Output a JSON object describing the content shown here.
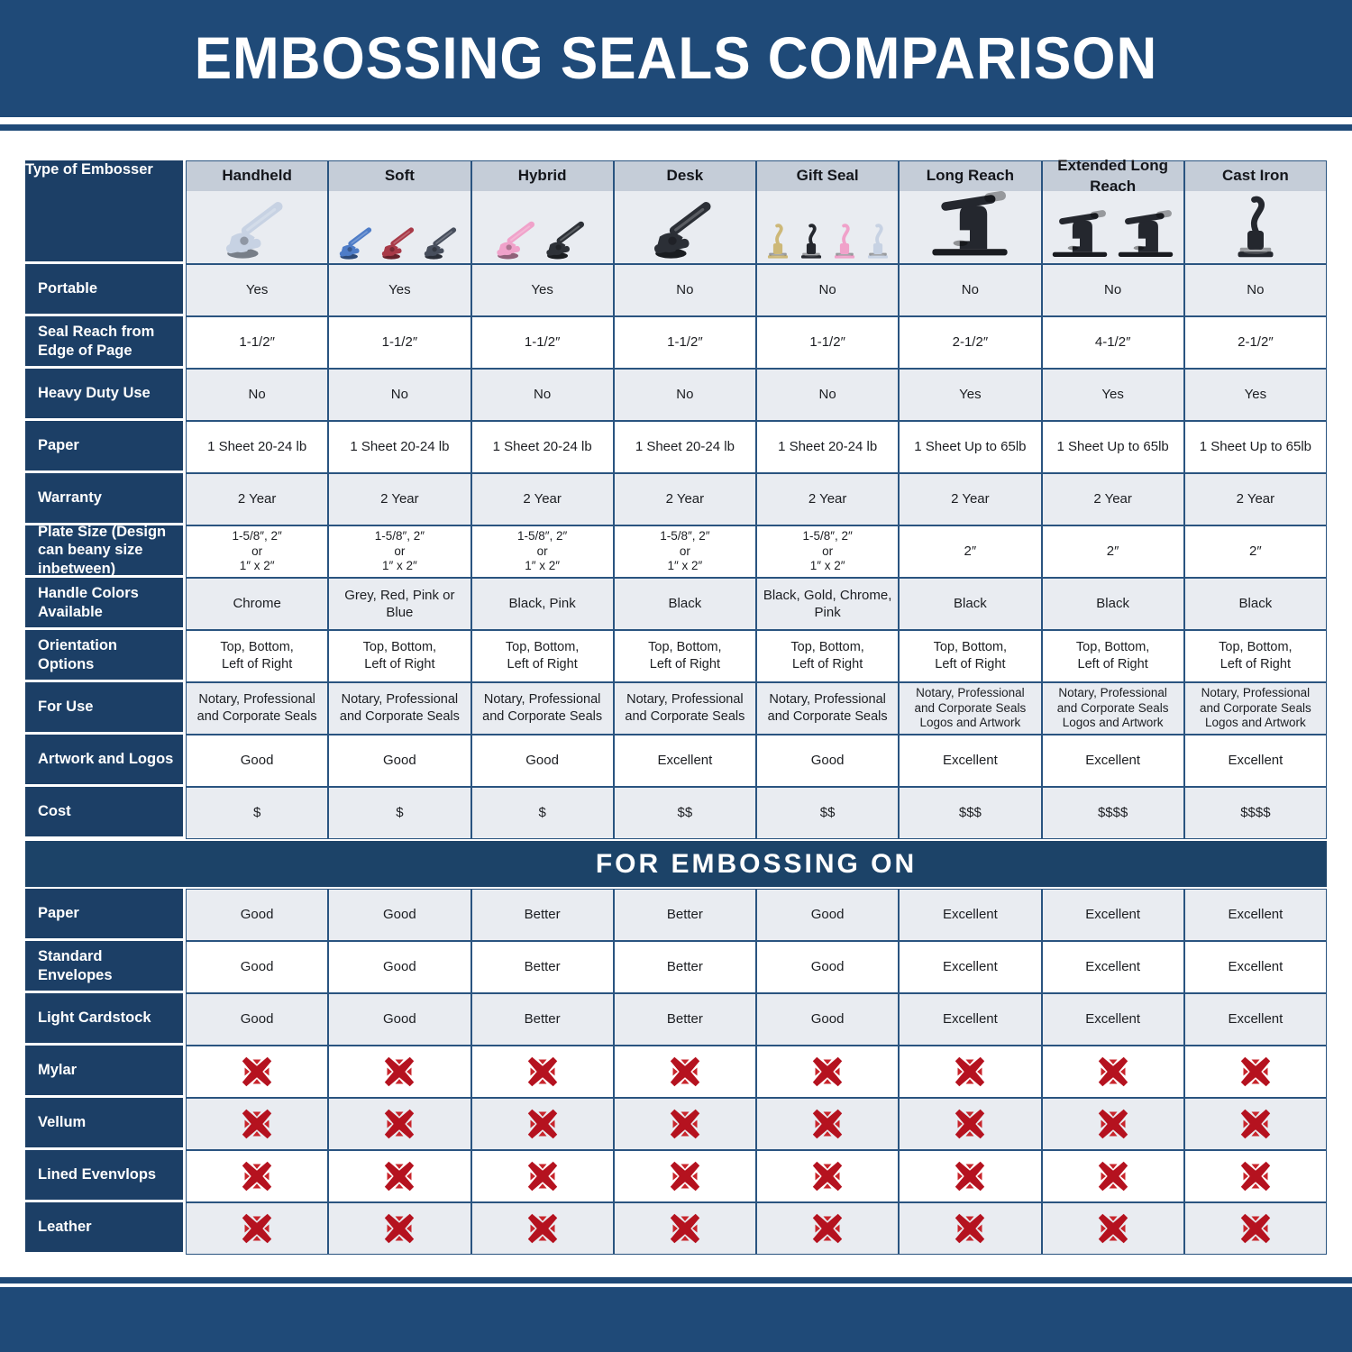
{
  "chart_data": {
    "type": "table",
    "title": "EMBOSSING SEALS COMPARISON",
    "corner_label": "Type of Embosser",
    "section2_title": "FOR EMBOSSING ON",
    "columns": [
      {
        "label": "Handheld",
        "images": [
          {
            "shape": "hand",
            "color": "#C7D2E3"
          }
        ]
      },
      {
        "label": "Soft",
        "images": [
          {
            "shape": "hand",
            "color": "#4E7CC7"
          },
          {
            "shape": "hand",
            "color": "#A83A48"
          },
          {
            "shape": "hand",
            "color": "#474E5C"
          }
        ]
      },
      {
        "label": "Hybrid",
        "images": [
          {
            "shape": "hand",
            "color": "#F0A2CA"
          },
          {
            "shape": "hand",
            "color": "#2E3238"
          }
        ]
      },
      {
        "label": "Desk",
        "images": [
          {
            "shape": "hand",
            "color": "#2B2F36"
          }
        ]
      },
      {
        "label": "Gift Seal",
        "images": [
          {
            "shape": "cast",
            "color": "#CDB878"
          },
          {
            "shape": "cast",
            "color": "#24272E"
          },
          {
            "shape": "cast",
            "color": "#F0A2CA"
          },
          {
            "shape": "cast",
            "color": "#C7D2E3"
          }
        ]
      },
      {
        "label": "Long Reach",
        "images": [
          {
            "shape": "desk",
            "color": "#24272E"
          }
        ]
      },
      {
        "label": "Extended Long Reach",
        "images": [
          {
            "shape": "desk",
            "color": "#24272E"
          },
          {
            "shape": "desk",
            "color": "#24272E"
          }
        ]
      },
      {
        "label": "Cast Iron",
        "images": [
          {
            "shape": "cast",
            "color": "#24272E"
          }
        ]
      }
    ],
    "spec_rows": [
      {
        "label": "Portable",
        "values": [
          "Yes",
          "Yes",
          "Yes",
          "No",
          "No",
          "No",
          "No",
          "No"
        ]
      },
      {
        "label": "Seal Reach from Edge of Page",
        "values": [
          "1-1/2″",
          "1-1/2″",
          "1-1/2″",
          "1-1/2″",
          "1-1/2″",
          "2-1/2″",
          "4-1/2″",
          "2-1/2″"
        ]
      },
      {
        "label": "Heavy Duty Use",
        "values": [
          "No",
          "No",
          "No",
          "No",
          "No",
          "Yes",
          "Yes",
          "Yes"
        ]
      },
      {
        "label": "Paper",
        "values": [
          "1 Sheet 20-24 lb",
          "1 Sheet 20-24 lb",
          "1 Sheet 20-24 lb",
          "1 Sheet 20-24 lb",
          "1 Sheet 20-24 lb",
          "1 Sheet Up to 65lb",
          "1 Sheet Up to 65lb",
          "1 Sheet Up to 65lb"
        ]
      },
      {
        "label": "Warranty",
        "values": [
          "2 Year",
          "2 Year",
          "2 Year",
          "2 Year",
          "2 Year",
          "2 Year",
          "2 Year",
          "2 Year"
        ]
      },
      {
        "label": "Plate Size (Design can beany size inbetween)",
        "values": [
          "1-5/8″, 2″\nor\n1″ x 2″",
          "1-5/8″, 2″\nor\n1″ x 2″",
          "1-5/8″, 2″\nor\n1″ x 2″",
          "1-5/8″, 2″\nor\n1″ x 2″",
          "1-5/8″, 2″\nor\n1″ x 2″",
          "2″",
          "2″",
          "2″"
        ]
      },
      {
        "label": "Handle Colors Available",
        "values": [
          "Chrome",
          "Grey, Red, Pink or Blue",
          "Black, Pink",
          "Black",
          "Black, Gold, Chrome, Pink",
          "Black",
          "Black",
          "Black"
        ]
      },
      {
        "label": "Orientation Options",
        "values": [
          "Top, Bottom,\nLeft of Right",
          "Top, Bottom,\nLeft of Right",
          "Top, Bottom,\nLeft of Right",
          "Top, Bottom,\nLeft of Right",
          "Top, Bottom,\nLeft of Right",
          "Top, Bottom,\nLeft of Right",
          "Top, Bottom,\nLeft of Right",
          "Top, Bottom,\nLeft of Right"
        ]
      },
      {
        "label": "For Use",
        "values": [
          "Notary, Professional\nand Corporate Seals",
          "Notary, Professional\nand Corporate Seals",
          "Notary, Professional\nand Corporate Seals",
          "Notary, Professional\nand Corporate Seals",
          "Notary, Professional\nand Corporate Seals",
          "Notary, Professional\nand Corporate Seals\nLogos and Artwork",
          "Notary, Professional\nand Corporate Seals\nLogos and Artwork",
          "Notary, Professional\nand Corporate Seals\nLogos and Artwork"
        ]
      },
      {
        "label": "Artwork and Logos",
        "values": [
          "Good",
          "Good",
          "Good",
          "Excellent",
          "Good",
          "Excellent",
          "Excellent",
          "Excellent"
        ]
      },
      {
        "label": "Cost",
        "values": [
          "$",
          "$",
          "$",
          "$$",
          "$$",
          "$$$",
          "$$$$",
          "$$$$"
        ]
      }
    ],
    "embossing_rows": [
      {
        "label": "Paper",
        "values": [
          "Good",
          "Good",
          "Better",
          "Better",
          "Good",
          "Excellent",
          "Excellent",
          "Excellent"
        ]
      },
      {
        "label": "Standard Envelopes",
        "values": [
          "Good",
          "Good",
          "Better",
          "Better",
          "Good",
          "Excellent",
          "Excellent",
          "Excellent"
        ]
      },
      {
        "label": "Light Cardstock",
        "values": [
          "Good",
          "Good",
          "Better",
          "Better",
          "Good",
          "Excellent",
          "Excellent",
          "Excellent"
        ]
      },
      {
        "label": "Mylar",
        "values": [
          "X",
          "X",
          "X",
          "X",
          "X",
          "X",
          "X",
          "X"
        ]
      },
      {
        "label": "Vellum",
        "values": [
          "X",
          "X",
          "X",
          "X",
          "X",
          "X",
          "X",
          "X"
        ]
      },
      {
        "label": "Lined Evenvlops",
        "values": [
          "X",
          "X",
          "X",
          "X",
          "X",
          "X",
          "X",
          "X"
        ]
      },
      {
        "label": "Leather",
        "values": [
          "X",
          "X",
          "X",
          "X",
          "X",
          "X",
          "X",
          "X"
        ]
      }
    ]
  },
  "colors": {
    "banner_navy": "#1F4A78",
    "label_navy": "#1C3F66",
    "section_navy": "#1C4368",
    "grid_border": "#2A5480",
    "column_header_band": "#C5CDD8",
    "row_stripe": "#E9ECF1",
    "x_red": "#B5121F"
  },
  "icons": {
    "x_marker": "x-icon",
    "product_shapes": [
      "hand-embosser",
      "desk-embosser",
      "cast-embosser"
    ]
  }
}
